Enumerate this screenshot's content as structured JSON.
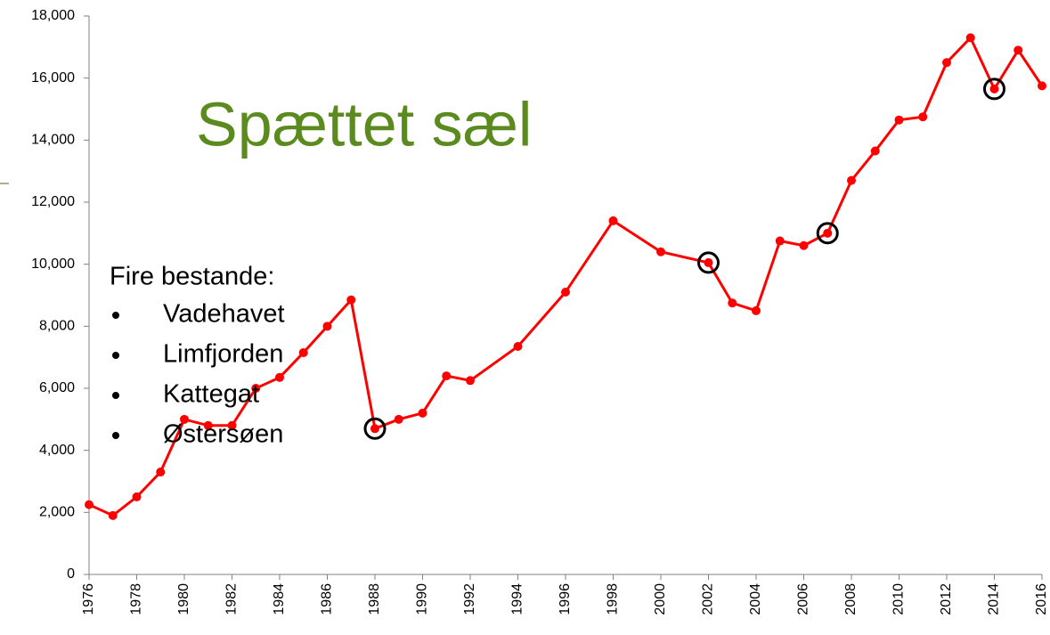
{
  "chart_data": {
    "type": "line",
    "title": "Spættet sæl",
    "annotation": {
      "heading": "Fire bestande:",
      "items": [
        "Vadehavet",
        "Limfjorden",
        "Kattegat",
        "Østersøen"
      ]
    },
    "x": [
      1976,
      1977,
      1978,
      1979,
      1980,
      1981,
      1982,
      1983,
      1984,
      1985,
      1986,
      1987,
      1988,
      1989,
      1990,
      1991,
      1992,
      1994,
      1996,
      1998,
      2000,
      2002,
      2003,
      2004,
      2005,
      2006,
      2007,
      2008,
      2009,
      2010,
      2011,
      2012,
      2013,
      2014,
      2015,
      2016
    ],
    "values": [
      2250,
      1900,
      2500,
      3300,
      5000,
      4800,
      4800,
      6000,
      6350,
      7150,
      8000,
      8850,
      4700,
      5000,
      5200,
      6400,
      6250,
      7350,
      9100,
      11400,
      10400,
      10050,
      8750,
      8500,
      10750,
      10600,
      11000,
      12700,
      13650,
      14650,
      14750,
      16500,
      17300,
      15650,
      16900,
      15750
    ],
    "color": "#ff0000",
    "highlighted": [
      1988,
      2002,
      2007,
      2014
    ],
    "xlim": [
      1976,
      2016
    ],
    "xticks": [
      1976,
      1978,
      1980,
      1982,
      1984,
      1986,
      1988,
      1990,
      1992,
      1994,
      1996,
      1998,
      2000,
      2002,
      2004,
      2006,
      2008,
      2010,
      2012,
      2014,
      2016
    ],
    "ylim": [
      0,
      18000
    ],
    "yticks": [
      0,
      {
        "value": 2000,
        "label": "2,000"
      },
      {
        "value": 4000,
        "label": "4,000"
      },
      {
        "value": 6000,
        "label": "6,000"
      },
      {
        "value": 8000,
        "label": "8,000"
      },
      {
        "value": 10000,
        "label": "10,000"
      },
      {
        "value": 12000,
        "label": "12,000"
      },
      {
        "value": 14000,
        "label": "14,000"
      },
      {
        "value": 16000,
        "label": "16,000"
      },
      {
        "value": 18000,
        "label": "18,000"
      }
    ]
  }
}
